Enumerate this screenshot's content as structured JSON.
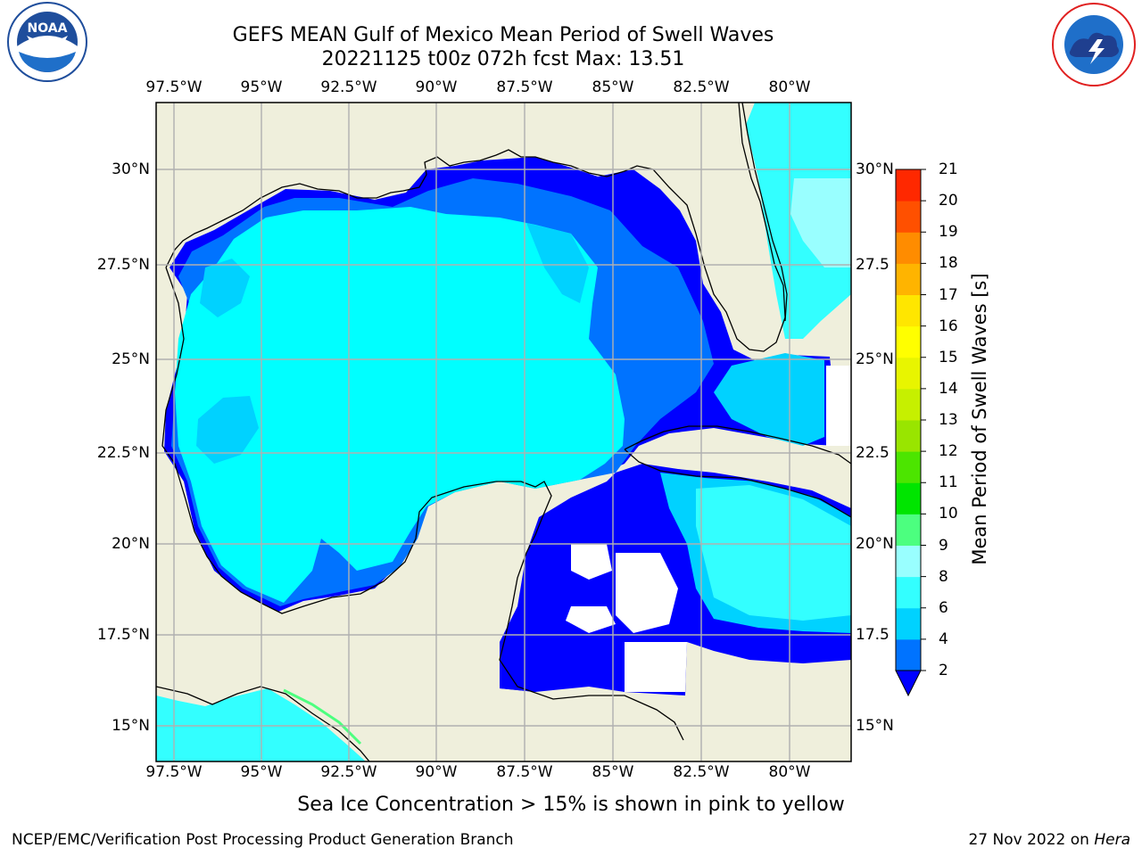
{
  "header": {
    "title_line1": "GEFS MEAN Gulf of Mexico Mean Period of Swell Waves",
    "title_line2": "20221125 t00z 072h fcst   Max: 13.51"
  },
  "logos": {
    "left": {
      "text": "NOAA",
      "ring_text": "NATIONAL OCEANIC AND ATMOSPHERIC ADMINISTRATION · U.S. DEPARTMENT OF COMMERCE",
      "color": "#1f4e9c"
    },
    "right": {
      "ring_text": "NATIONAL WEATHER SERVICE",
      "color": "#e02020"
    }
  },
  "map": {
    "lon_ticks": [
      "97.5°W",
      "95°W",
      "92.5°W",
      "90°W",
      "87.5°W",
      "85°W",
      "82.5°W",
      "80°W"
    ],
    "lat_ticks_left": [
      "30°N",
      "27.5°N",
      "25°N",
      "22.5°N",
      "20°N",
      "17.5°N",
      "15°N"
    ],
    "lat_ticks_right": [
      "30°N",
      "27.5",
      "25°N",
      "22.5",
      "20°N",
      "17.5",
      "15°N"
    ],
    "land_color": "#efefdc",
    "grid_color": "#b0b0b0"
  },
  "colorbar": {
    "label": "Mean Period of Swell Waves [s]",
    "ticks": [
      "2",
      "4",
      "6",
      "8",
      "9",
      "10",
      "11",
      "12",
      "13",
      "14",
      "15",
      "16",
      "17",
      "18",
      "19",
      "20",
      "21"
    ],
    "colors": [
      "#0073ff",
      "#00d2ff",
      "#33ffff",
      "#99ffff",
      "#4cff7f",
      "#00e500",
      "#4ce500",
      "#99e500",
      "#c6f000",
      "#e8f500",
      "#ffff00",
      "#ffe600",
      "#ffb400",
      "#ff8c00",
      "#ff5000",
      "#ff2800",
      "#ff0000"
    ],
    "under_color": "#0000ff"
  },
  "caption": "Sea Ice Concentration > 15% is shown in pink to yellow",
  "footer": {
    "left": "NCEP/EMC/Verification Post Processing Product Generation Branch",
    "right_date": "27 Nov 2022 on",
    "right_host": "Hera"
  }
}
